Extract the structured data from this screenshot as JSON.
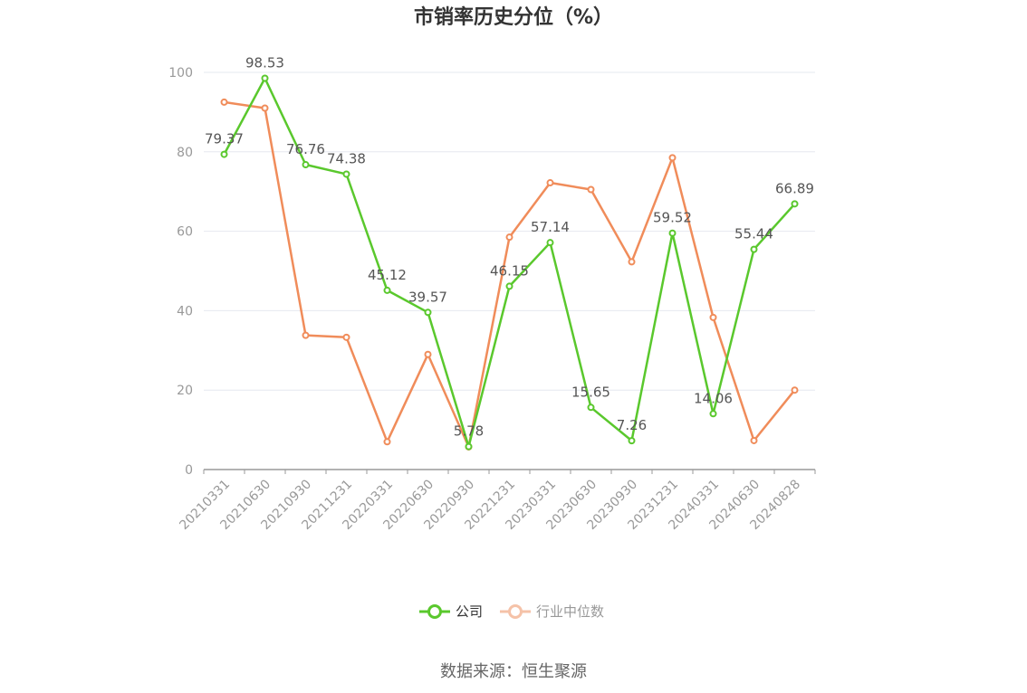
{
  "chart_data": {
    "type": "line",
    "title": "市销率历史分位（%）",
    "x": [
      "20210331",
      "20210630",
      "20210930",
      "20211231",
      "20220331",
      "20220630",
      "20220930",
      "20221231",
      "20230331",
      "20230630",
      "20230930",
      "20231231",
      "20240331",
      "20240630",
      "20240828"
    ],
    "ylim": [
      0,
      100
    ],
    "yticks": [
      0,
      20,
      40,
      60,
      80,
      100
    ],
    "grid": true,
    "legend_position": "bottom",
    "series": [
      {
        "name": "公司",
        "color": "#5ac82d",
        "values": [
          79.37,
          98.53,
          76.76,
          74.38,
          45.12,
          39.57,
          5.78,
          46.15,
          57.14,
          15.65,
          7.26,
          59.52,
          14.06,
          55.44,
          66.89
        ],
        "labels": [
          "79.37",
          "98.53",
          "76.76",
          "74.38",
          "45.12",
          "39.57",
          "5.78",
          "46.15",
          "57.14",
          "15.65",
          "7.26",
          "59.52",
          "14.06",
          "55.44",
          "66.89"
        ]
      },
      {
        "name": "行业中位数",
        "color": "#f08c5a",
        "values": [
          92.5,
          91.0,
          33.8,
          33.3,
          7.0,
          29.0,
          5.7,
          58.5,
          72.2,
          70.5,
          52.3,
          78.5,
          38.3,
          7.3,
          20.0
        ]
      }
    ],
    "legend_text_colors": {
      "active": "#333333",
      "inactive": "#999999"
    },
    "legend_icon_inactive_color": "#f5c2a8",
    "source": "数据来源：恒生聚源"
  }
}
